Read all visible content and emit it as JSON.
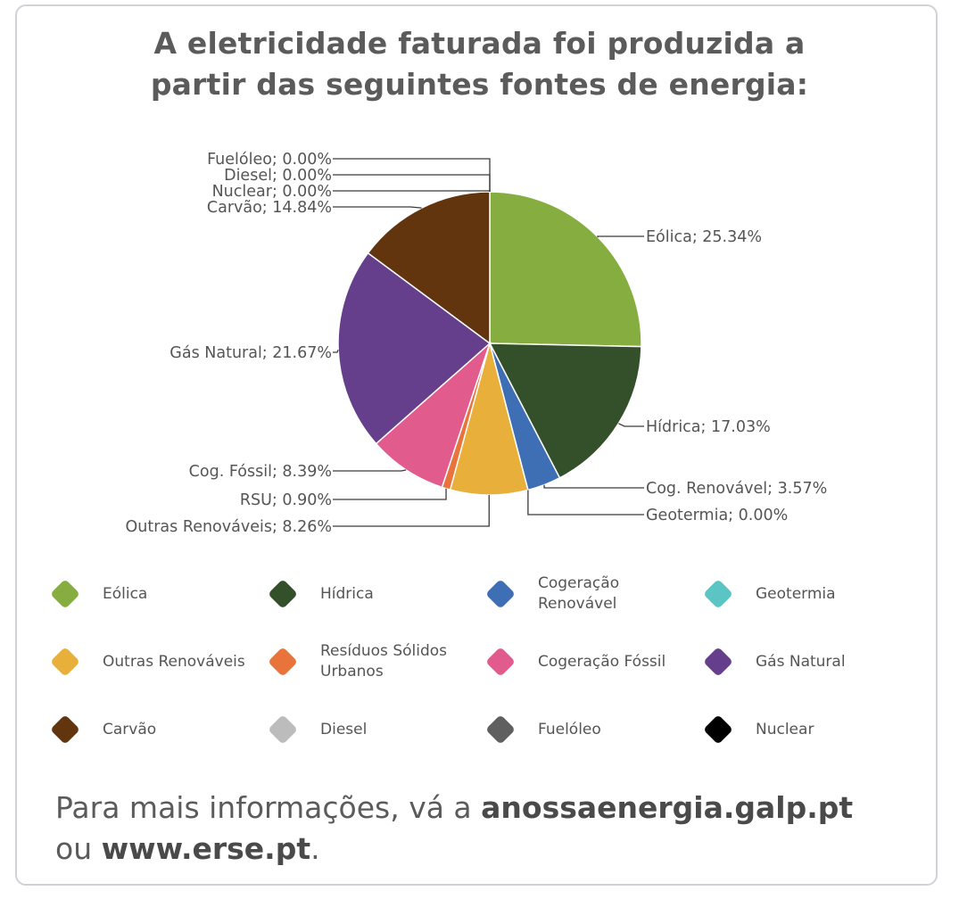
{
  "title": {
    "line1": "A eletricidade faturada foi produzida a",
    "line2": "partir das seguintes fontes de energia:"
  },
  "chart_data": {
    "type": "pie",
    "slices": [
      {
        "label": "Eólica",
        "value": 25.34,
        "callout": "Eólica; 25.34%",
        "color": "#86ad3f"
      },
      {
        "label": "Hídrica",
        "value": 17.03,
        "callout": "Hídrica; 17.03%",
        "color": "#33502a"
      },
      {
        "label": "Cogeração Renovável",
        "value": 3.57,
        "callout": "Cog. Renovável; 3.57%",
        "color": "#3e6eb4"
      },
      {
        "label": "Geotermia",
        "value": 0.0,
        "callout": "Geotermia; 0.00%",
        "color": "#5bc4c4"
      },
      {
        "label": "Outras Renováveis",
        "value": 8.26,
        "callout": "Outras Renováveis; 8.26%",
        "color": "#e8b03a"
      },
      {
        "label": "Resíduos Sólidos Urbanos",
        "value": 0.9,
        "callout": "RSU; 0.90%",
        "color": "#e8743b"
      },
      {
        "label": "Cogeração Fóssil",
        "value": 8.39,
        "callout": "Cog. Fóssil; 8.39%",
        "color": "#e15b8c"
      },
      {
        "label": "Gás Natural",
        "value": 21.67,
        "callout": "Gás Natural; 21.67%",
        "color": "#653e8c"
      },
      {
        "label": "Carvão",
        "value": 14.84,
        "callout": "Carvão; 14.84%",
        "color": "#62350f"
      },
      {
        "label": "Nuclear",
        "value": 0.0,
        "callout": "Nuclear; 0.00%",
        "color": "#000000"
      },
      {
        "label": "Diesel",
        "value": 0.0,
        "callout": "Diesel; 0.00%",
        "color": "#bcbcbc"
      },
      {
        "label": "Fuelóleo",
        "value": 0.0,
        "callout": "Fuelóleo; 0.00%",
        "color": "#5f5f5f"
      }
    ]
  },
  "legend": [
    {
      "label": "Eólica",
      "color": "#86ad3f"
    },
    {
      "label": "Hídrica",
      "color": "#33502a"
    },
    {
      "label": "Cogeração Renovável",
      "color": "#3e6eb4"
    },
    {
      "label": "Geotermia",
      "color": "#5bc4c4"
    },
    {
      "label": "Outras Renováveis",
      "color": "#e8b03a"
    },
    {
      "label": "Resíduos Sólidos Urbanos",
      "color": "#e8743b"
    },
    {
      "label": "Cogeração Fóssil",
      "color": "#e15b8c"
    },
    {
      "label": "Gás Natural",
      "color": "#653e8c"
    },
    {
      "label": "Carvão",
      "color": "#62350f"
    },
    {
      "label": "Diesel",
      "color": "#bcbcbc"
    },
    {
      "label": "Fuelóleo",
      "color": "#5f5f5f"
    },
    {
      "label": "Nuclear",
      "color": "#000000"
    }
  ],
  "footer": {
    "prefix": "Para mais informações, vá a ",
    "link1": "anossaenergia.galp.pt",
    "middle": "ou ",
    "link2": "www.erse.pt",
    "suffix": "."
  }
}
